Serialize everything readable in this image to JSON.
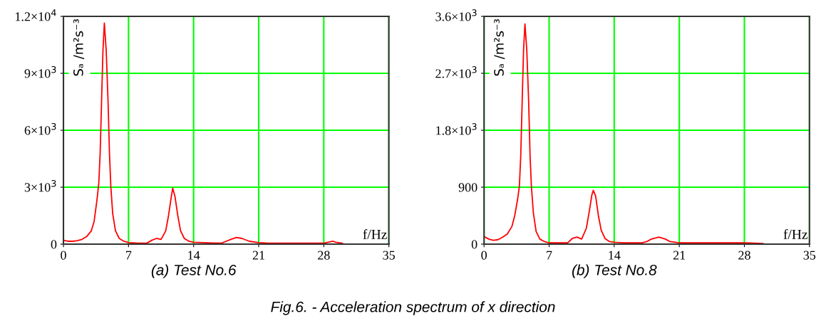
{
  "chart_data": [
    {
      "type": "line",
      "title": "(a) Test No.6",
      "xlabel": "f/Hz",
      "ylabel": "Sₐ /m²s⁻³",
      "x": [
        0,
        0.5,
        1,
        1.5,
        2,
        2.5,
        3,
        3.3,
        3.6,
        3.8,
        3.95,
        4.1,
        4.25,
        4.4,
        4.6,
        4.8,
        4.95,
        5.1,
        5.3,
        5.6,
        6,
        6.5,
        7,
        8,
        9,
        9.5,
        10,
        10.5,
        11,
        11.3,
        11.6,
        11.75,
        12,
        12.3,
        12.6,
        13,
        13.5,
        14,
        15,
        16,
        17,
        17.5,
        18,
        18.6,
        19.2,
        20,
        21,
        22,
        25,
        28,
        29,
        29.3,
        30
      ],
      "series": [
        {
          "color": "#ff0000",
          "values": [
            200,
            150,
            150,
            180,
            250,
            400,
            700,
            1200,
            2300,
            3200,
            4800,
            7500,
            10200,
            11650,
            10200,
            7500,
            4800,
            3000,
            1600,
            700,
            300,
            150,
            80,
            50,
            60,
            200,
            300,
            250,
            700,
            1500,
            2500,
            2950,
            2500,
            1500,
            700,
            300,
            150,
            100,
            80,
            60,
            50,
            150,
            250,
            350,
            300,
            150,
            80,
            50,
            50,
            50,
            150,
            100,
            50
          ]
        }
      ],
      "xlim": [
        0,
        35
      ],
      "xticks": [
        0,
        7,
        14,
        21,
        28,
        35
      ],
      "ylim": [
        0,
        12000
      ],
      "yticks": [
        0,
        {
          "value": 3000,
          "label": "3×10$^{3}$"
        },
        {
          "value": 6000,
          "label": "6×10$^{3}$"
        },
        {
          "value": 9000,
          "label": "9×10$^{3}$"
        },
        {
          "value": 12000,
          "label": "1.2×10$^{4}$"
        }
      ],
      "grid": true,
      "annotations": [
        "Fig.6. - Acceleration spectrum of x direction"
      ]
    },
    {
      "type": "line",
      "title": "(b) Test No.8",
      "xlabel": "f/Hz",
      "ylabel": "Sₐ /m²s⁻³",
      "x": [
        0,
        0.5,
        1,
        1.5,
        2,
        2.5,
        3,
        3.3,
        3.6,
        3.8,
        3.95,
        4.1,
        4.25,
        4.4,
        4.6,
        4.8,
        4.95,
        5.1,
        5.3,
        5.6,
        6,
        6.5,
        7,
        8,
        9,
        9.5,
        10,
        10.5,
        11,
        11.3,
        11.6,
        11.75,
        12,
        12.3,
        12.6,
        13,
        13.5,
        14,
        15,
        16,
        17,
        17.5,
        18,
        18.8,
        19.5,
        20,
        21,
        25,
        28,
        30
      ],
      "series": [
        {
          "color": "#ff0000",
          "values": [
            120,
            80,
            60,
            70,
            110,
            160,
            280,
            450,
            700,
            910,
            1400,
            2250,
            3060,
            3480,
            3060,
            2250,
            1400,
            900,
            500,
            200,
            80,
            40,
            20,
            20,
            20,
            90,
            110,
            80,
            250,
            500,
            780,
            850,
            760,
            450,
            220,
            90,
            40,
            30,
            20,
            20,
            20,
            40,
            80,
            110,
            80,
            40,
            20,
            20,
            20,
            10
          ]
        }
      ],
      "xlim": [
        0,
        35
      ],
      "xticks": [
        0,
        7,
        14,
        21,
        28,
        35
      ],
      "ylim": [
        0,
        3600
      ],
      "yticks": [
        0,
        900,
        {
          "value": 1800,
          "label": "1.8×10$^{3}$"
        },
        {
          "value": 2700,
          "label": "2.7×10$^{3}$"
        },
        {
          "value": 3600,
          "label": "3.6×10$^{3}$"
        }
      ],
      "grid": true
    }
  ]
}
